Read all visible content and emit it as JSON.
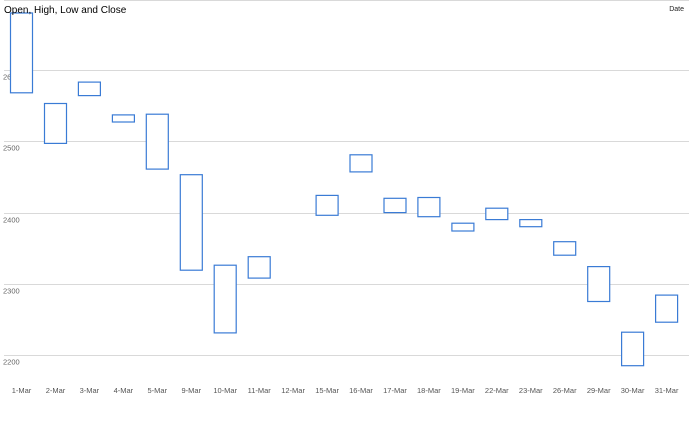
{
  "chart_data": {
    "type": "candlestick",
    "title": "Open, High, Low and Close",
    "legend": [
      "Date"
    ],
    "legend_position": "top-right",
    "grid": true,
    "ylim": [
      2150,
      2700
    ],
    "yticks": [
      2200,
      2300,
      2400,
      2500,
      2600
    ],
    "categories": [
      "1-Mar",
      "2-Mar",
      "3-Mar",
      "4-Mar",
      "5-Mar",
      "9-Mar",
      "10-Mar",
      "11-Mar",
      "12-Mar",
      "15-Mar",
      "16-Mar",
      "17-Mar",
      "18-Mar",
      "19-Mar",
      "22-Mar",
      "23-Mar",
      "26-Mar",
      "29-Mar",
      "30-Mar",
      "31-Mar"
    ],
    "series": [
      {
        "values": [
          {
            "open": 2680,
            "close": 2568
          },
          {
            "open": 2553,
            "close": 2497
          },
          {
            "open": 2583,
            "close": 2564
          },
          {
            "open": 2537,
            "close": 2527
          },
          {
            "open": 2538,
            "close": 2461
          },
          {
            "open": 2453,
            "close": 2319
          },
          {
            "open": 2326,
            "close": 2231
          },
          {
            "open": 2338,
            "close": 2308
          },
          null,
          {
            "open": 2424,
            "close": 2396
          },
          {
            "open": 2481,
            "close": 2457
          },
          {
            "open": 2420,
            "close": 2400
          },
          {
            "open": 2421,
            "close": 2394
          },
          {
            "open": 2385,
            "close": 2374
          },
          {
            "open": 2406,
            "close": 2390
          },
          {
            "open": 2390,
            "close": 2380
          },
          {
            "open": 2359,
            "close": 2340
          },
          {
            "open": 2324,
            "close": 2275
          },
          {
            "open": 2232,
            "close": 2185
          },
          {
            "open": 2284,
            "close": 2246
          }
        ]
      }
    ]
  }
}
